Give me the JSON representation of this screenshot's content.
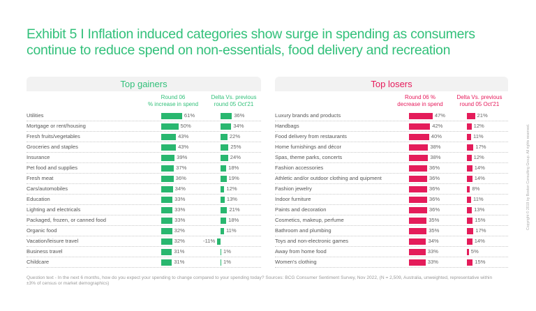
{
  "title": "Exhibit 5 I Inflation induced categories show surge in spending as consumers continue to reduce spend on non-essentials, food delivery and recreation",
  "footnote": "Question text - In the next 6 months, how do you expect your spending to change compared to your spending today? Sources: BCG Consumer Sentiment Survey, Nov 2022, (N =  2,509,  Australia, unweighted, representative within ±3% of census or market demographics)",
  "copyright": "Copyright © 2019 by Boston Consulting Group. All rights reserved.",
  "colors": {
    "gainers": "#29b76f",
    "losers": "#e41c5a",
    "title": "#32c07a"
  },
  "chart_data": [
    {
      "type": "bar",
      "title": "Top gainers",
      "orientation": "horizontal",
      "series": [
        {
          "name": "Round 06 % increase in spend",
          "values": [
            61,
            50,
            43,
            43,
            39,
            37,
            36,
            34,
            33,
            33,
            33,
            32,
            32,
            31,
            31
          ]
        },
        {
          "name": "Delta Vs. previous round 05 Oct'21",
          "values": [
            36,
            34,
            22,
            25,
            24,
            18,
            19,
            12,
            13,
            21,
            18,
            11,
            -11,
            1,
            1
          ]
        }
      ],
      "categories": [
        "Utilities",
        "Mortgage or rent/housing",
        "Fresh fruits/vegetables",
        "Groceries and staples",
        "Insurance",
        "Pet food and supplies",
        "Fresh meat",
        "Cars/automobiles",
        "Education",
        "Lighting and electricals",
        "Packaged, frozen, or canned food",
        "Organic food",
        "Vacation/leisure travel",
        "Business travel",
        "Childcare"
      ],
      "col_headers": [
        "Round 06\n% increase in spend",
        "Delta Vs. previous\nround 05 Oct'21"
      ],
      "unit": "%"
    },
    {
      "type": "bar",
      "title": "Top losers",
      "orientation": "horizontal",
      "series": [
        {
          "name": "Round 06 % decrease in spend",
          "values": [
            47,
            42,
            40,
            38,
            38,
            36,
            36,
            36,
            36,
            36,
            35,
            35,
            34,
            33,
            33
          ]
        },
        {
          "name": "Delta Vs. previous round 05 Oct'21",
          "values": [
            21,
            12,
            11,
            17,
            12,
            14,
            14,
            8,
            11,
            13,
            15,
            17,
            14,
            5,
            15
          ]
        }
      ],
      "categories": [
        "Luxury brands and products",
        "Handbags",
        "Food delivery from restaurants",
        "Home furnishings and décor",
        "Spas, theme parks, concerts",
        "Fashion accessories",
        "Athletic and/or outdoor clothing and quipment",
        "Fashion jewelry",
        "Indoor furniture",
        "Paints and decoration",
        "Cosmetics, makeup, perfume",
        "Bathroom and plumbing",
        "Toys and non-electronic games",
        "Away from home food",
        "Women's clothing"
      ],
      "col_headers": [
        "Round 06 %\ndecrease in spend",
        "Delta Vs. previous\nround 05 Oct'21"
      ],
      "unit": "%"
    }
  ]
}
